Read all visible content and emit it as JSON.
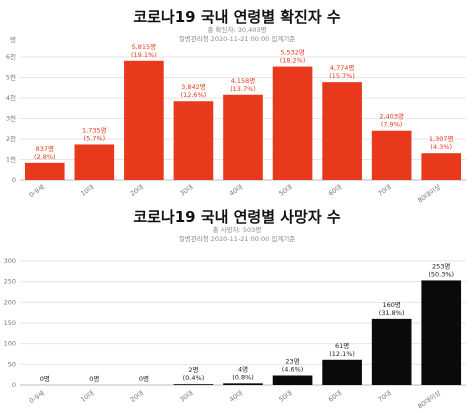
{
  "chart_data": [
    {
      "type": "bar",
      "title": "코로나19 국내 연령별 확진자 수",
      "subtitle_total": "총 확진자: 30,403명",
      "subtitle_source": "질병관리청 2020-11-21 00:00 집계기준",
      "unit_label": "명",
      "categories": [
        "0-9세",
        "10대",
        "20대",
        "30대",
        "40대",
        "50대",
        "60대",
        "70대",
        "80대이상"
      ],
      "values": [
        837,
        1735,
        5815,
        3842,
        4158,
        5532,
        4774,
        2403,
        1307
      ],
      "value_labels": [
        "837명",
        "1,735명",
        "5,815명",
        "3,842명",
        "4,158명",
        "5,532명",
        "4,774명",
        "2,403명",
        "1,307명"
      ],
      "percent_labels": [
        "(2.8%)",
        "(5.7%)",
        "(19.1%)",
        "(12.6%)",
        "(13.7%)",
        "(18.2%)",
        "(15.7%)",
        "(7.9%)",
        "(4.3%)"
      ],
      "ylim": [
        0,
        6000
      ],
      "yticks": [
        0,
        1000,
        2000,
        3000,
        4000,
        5000,
        6000
      ],
      "ytick_labels": [
        "0",
        "1천",
        "2천",
        "3천",
        "4천",
        "5천",
        "6천"
      ],
      "bar_color": "#e8391d",
      "label_color": "#e8391d",
      "grid": true
    },
    {
      "type": "bar",
      "title": "코로나19 국내 연령별 사망자 수",
      "subtitle_total": "총 사망자: 503명",
      "subtitle_source": "질병관리청 2020-11-21 00:00 집계기준",
      "unit_label": "",
      "categories": [
        "0-9세",
        "10대",
        "20대",
        "30대",
        "40대",
        "50대",
        "60대",
        "70대",
        "80대이상"
      ],
      "values": [
        0,
        0,
        0,
        2,
        4,
        23,
        61,
        160,
        253
      ],
      "value_labels": [
        "0명",
        "0명",
        "0명",
        "2명",
        "4명",
        "23명",
        "61명",
        "160명",
        "253명"
      ],
      "percent_labels": [
        "",
        "",
        "",
        "(0.4%)",
        "(0.8%)",
        "(4.6%)",
        "(12.1%)",
        "(31.8%)",
        "(50.3%)"
      ],
      "ylim": [
        0,
        300
      ],
      "yticks": [
        0,
        50,
        100,
        150,
        200,
        250,
        300
      ],
      "ytick_labels": [
        "0",
        "50",
        "100",
        "150",
        "200",
        "250",
        "300"
      ],
      "bar_color": "#0a0a0a",
      "label_color": "#222222",
      "grid": true
    }
  ]
}
